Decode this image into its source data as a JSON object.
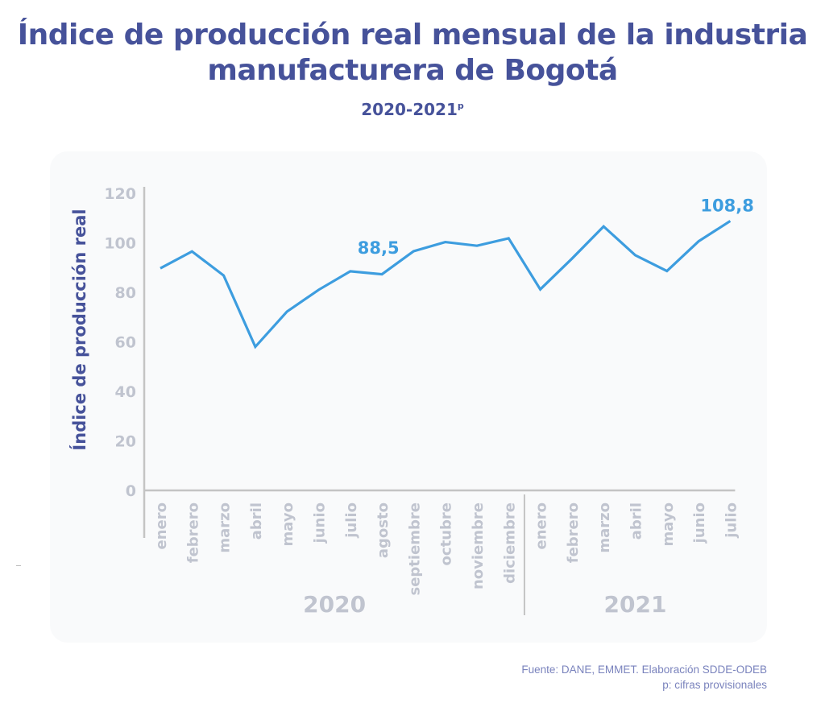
{
  "title_line1": "Índice de producción real mensual de la industria",
  "title_line2": "manufacturera de Bogotá",
  "subtitle": "2020-2021",
  "subtitle_sup": "p",
  "footer": {
    "source": "Fuente: DANE, EMMET. Elaboración SDDE-ODEB",
    "note": "p: cifras provisionales"
  },
  "colors": {
    "title": "#46529a",
    "line": "#3d9ddf",
    "axis": "#c4c4c4",
    "tick_text": "#c0c4cf"
  },
  "chart_data": {
    "type": "line",
    "title": "Índice de producción real mensual de la industria manufacturera de Bogotá",
    "subtitle": "2020-2021p",
    "xlabel": "",
    "ylabel": "Índice de producción real",
    "ylim": [
      0,
      120
    ],
    "yticks": [
      0,
      20,
      40,
      60,
      80,
      100,
      120
    ],
    "grid": false,
    "categories": [
      "enero",
      "febrero",
      "marzo",
      "abril",
      "mayo",
      "junio",
      "julio",
      "agosto",
      "septiembre",
      "octubre",
      "noviembre",
      "diciembre",
      "enero",
      "febrero",
      "marzo",
      "abril",
      "mayo",
      "junio",
      "julio"
    ],
    "groups": [
      {
        "label": "2020",
        "start": 0,
        "end": 11
      },
      {
        "label": "2021",
        "start": 12,
        "end": 18
      }
    ],
    "series": [
      {
        "name": "Índice de producción real",
        "values": [
          89.7,
          96.5,
          86.8,
          58.0,
          72.2,
          81.0,
          88.5,
          87.3,
          96.6,
          100.3,
          98.8,
          101.8,
          81.2,
          93.6,
          106.6,
          95.0,
          88.6,
          100.6,
          108.8
        ]
      }
    ],
    "annotations": [
      {
        "index": 6,
        "text": "88,5"
      },
      {
        "index": 18,
        "text": "108,8"
      }
    ]
  }
}
